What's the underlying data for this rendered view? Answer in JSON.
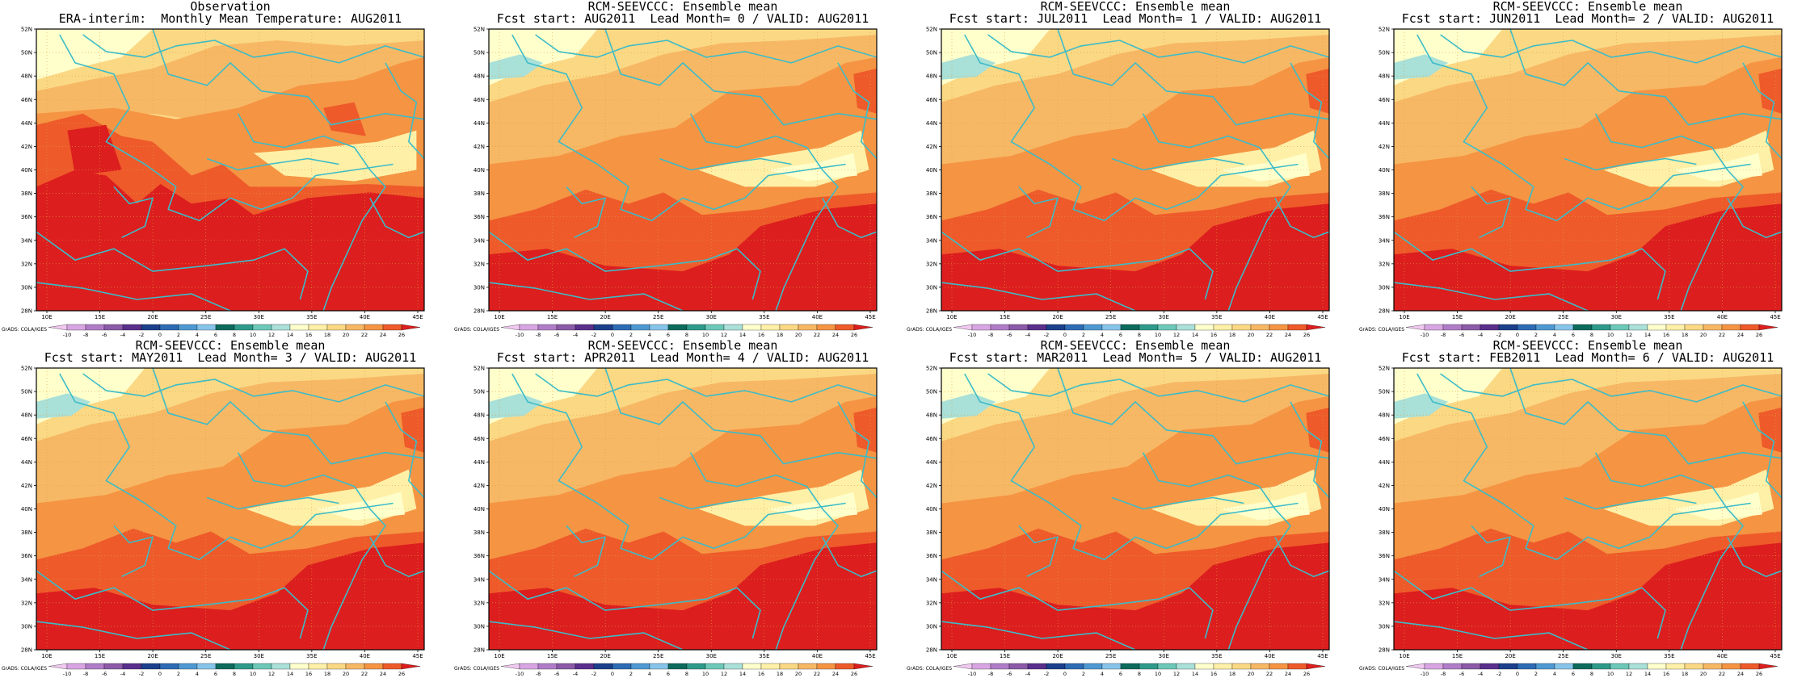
{
  "colors": {
    "v_10": "#f0c8f0",
    "v_8": "#d7a5e2",
    "v_6": "#b07cc8",
    "v_4": "#8b5aa8",
    "v_2": "#5a2f8c",
    "v0": "#1c3f8c",
    "v2": "#2d6bb5",
    "v4": "#4f99d2",
    "v6": "#86c4ea",
    "v8": "#0b6b5d",
    "v10": "#2e9a8a",
    "v12": "#6cc8b8",
    "v14": "#a9e0d8",
    "v16": "#ffffcc",
    "v18": "#fff0a8",
    "v20": "#fbd884",
    "v22": "#f7b865",
    "v24": "#f59443",
    "v26": "#ee5a2a",
    "v28": "#dc1e1e",
    "coast": "#3cbcc8",
    "grid": "#e0a040"
  },
  "colorbar": {
    "labels": [
      "-10",
      "-8",
      "-6",
      "-4",
      "-2",
      "0",
      "2",
      "4",
      "6",
      "8",
      "10",
      "12",
      "14",
      "16",
      "18",
      "20",
      "22",
      "24",
      "26"
    ],
    "credit": "GrADS: COLA/IGES"
  },
  "axes": {
    "lat_labels": [
      "52N",
      "50N",
      "48N",
      "46N",
      "44N",
      "42N",
      "40N",
      "38N",
      "36N",
      "34N",
      "32N",
      "30N",
      "28N"
    ],
    "lon_labels": [
      "10E",
      "15E",
      "20E",
      "25E",
      "30E",
      "35E",
      "40E",
      "45E"
    ]
  },
  "panels": [
    {
      "line1": "Observation",
      "line2": "ERA-interim:  Monthly Mean Temperature: AUG2011",
      "variant": "obs"
    },
    {
      "line1": "RCM-SEEVCCC: Ensemble mean",
      "line2": "Fcst start: AUG2011  Lead Month= 0 / VALID: AUG2011",
      "variant": "fc"
    },
    {
      "line1": "RCM-SEEVCCC: Ensemble mean",
      "line2": "Fcst start: JUL2011  Lead Month= 1 / VALID: AUG2011",
      "variant": "fc"
    },
    {
      "line1": "RCM-SEEVCCC: Ensemble mean",
      "line2": "Fcst start: JUN2011  Lead Month= 2 / VALID: AUG2011",
      "variant": "fc"
    },
    {
      "line1": "RCM-SEEVCCC: Ensemble mean",
      "line2": "Fcst start: MAY2011  Lead Month= 3 / VALID: AUG2011",
      "variant": "fc"
    },
    {
      "line1": "RCM-SEEVCCC: Ensemble mean",
      "line2": "Fcst start: APR2011  Lead Month= 4 / VALID: AUG2011",
      "variant": "fc"
    },
    {
      "line1": "RCM-SEEVCCC: Ensemble mean",
      "line2": "Fcst start: MAR2011  Lead Month= 5 / VALID: AUG2011",
      "variant": "fc"
    },
    {
      "line1": "RCM-SEEVCCC: Ensemble mean",
      "line2": "Fcst start: FEB2011  Lead Month= 6 / VALID: AUG2011",
      "variant": "fc"
    }
  ]
}
